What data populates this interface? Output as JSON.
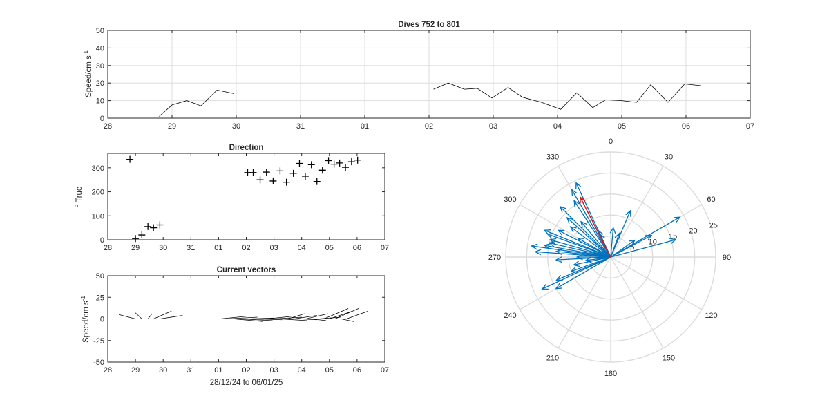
{
  "chart_data": [
    {
      "type": "line",
      "title": "Dives 752 to 801",
      "xlabel": "",
      "ylabel": "Speed/cm s",
      "ylabel_exp": "-1",
      "xlim": [
        0,
        10
      ],
      "ylim": [
        0,
        50
      ],
      "xticks": [
        "28",
        "29",
        "30",
        "31",
        "01",
        "02",
        "03",
        "04",
        "05",
        "06",
        "07"
      ],
      "yticks": [
        "0",
        "10",
        "20",
        "30",
        "40",
        "50"
      ],
      "grid": true,
      "series": [
        {
          "x": [
            0.8,
            1.0,
            1.23,
            1.45,
            1.7,
            1.96
          ],
          "y": [
            1,
            7.5,
            10,
            7,
            16,
            14
          ]
        },
        {
          "x": [
            5.07,
            5.3,
            5.55,
            5.75,
            5.98,
            6.23,
            6.45,
            6.75,
            7.05,
            7.3,
            7.55,
            7.75,
            8.0,
            8.23,
            8.45,
            8.72,
            8.98,
            9.23
          ],
          "y": [
            16.5,
            20,
            16.5,
            17,
            11.5,
            17.5,
            12,
            9,
            5,
            14.5,
            6,
            10.5,
            10,
            9,
            19,
            9,
            19.5,
            18.5
          ]
        }
      ]
    },
    {
      "type": "scatter",
      "title": "Direction",
      "xlabel": "",
      "ylabel": "True",
      "ylabel_prefix": "o",
      "xlim": [
        0,
        10
      ],
      "ylim": [
        0,
        360
      ],
      "xticks": [
        "28",
        "29",
        "30",
        "31",
        "01",
        "02",
        "03",
        "04",
        "05",
        "06",
        "07"
      ],
      "yticks": [
        "0",
        "100",
        "200",
        "300"
      ],
      "grid": false,
      "marker": "+",
      "points": [
        [
          0.8,
          335
        ],
        [
          1.0,
          5
        ],
        [
          1.23,
          20
        ],
        [
          1.45,
          55
        ],
        [
          1.65,
          50
        ],
        [
          1.88,
          62
        ],
        [
          5.05,
          280
        ],
        [
          5.25,
          280
        ],
        [
          5.5,
          250
        ],
        [
          5.73,
          282
        ],
        [
          5.97,
          245
        ],
        [
          6.22,
          287
        ],
        [
          6.45,
          240
        ],
        [
          6.7,
          277
        ],
        [
          6.92,
          318
        ],
        [
          7.13,
          265
        ],
        [
          7.35,
          313
        ],
        [
          7.55,
          243
        ],
        [
          7.75,
          290
        ],
        [
          7.97,
          330
        ],
        [
          8.17,
          315
        ],
        [
          8.37,
          320
        ],
        [
          8.58,
          302
        ],
        [
          8.8,
          325
        ],
        [
          9.02,
          332
        ]
      ]
    },
    {
      "type": "line",
      "title": "Current vectors",
      "xlabel": "28/12/24 to 06/01/25",
      "ylabel": "Speed/cm s",
      "ylabel_exp": "-1",
      "xlim": [
        0,
        10
      ],
      "ylim": [
        -50,
        50
      ],
      "xticks": [
        "28",
        "29",
        "30",
        "31",
        "01",
        "02",
        "03",
        "04",
        "05",
        "06",
        "07"
      ],
      "yticks": [
        "-50",
        "-25",
        "0",
        "25",
        "50"
      ],
      "grid": false,
      "vectors": [
        [
          1.0,
          0,
          0.4,
          5
        ],
        [
          1.23,
          0,
          1.0,
          7
        ],
        [
          1.45,
          0,
          1.6,
          6
        ],
        [
          1.65,
          0,
          2.3,
          9
        ],
        [
          1.88,
          0,
          2.7,
          4
        ],
        [
          4.05,
          0,
          5.0,
          3
        ],
        [
          4.3,
          0,
          5.4,
          2
        ],
        [
          4.55,
          0,
          5.6,
          -3
        ],
        [
          4.8,
          0,
          5.95,
          -2
        ],
        [
          5.05,
          0,
          6.0,
          1
        ],
        [
          5.3,
          0,
          6.3,
          -1
        ],
        [
          5.5,
          0,
          6.55,
          0
        ],
        [
          5.75,
          0,
          6.65,
          3
        ],
        [
          6.0,
          0,
          7.0,
          2
        ],
        [
          6.22,
          0,
          7.2,
          -2
        ],
        [
          6.5,
          0,
          7.1,
          6
        ],
        [
          6.72,
          0,
          7.55,
          4
        ],
        [
          6.95,
          0,
          7.55,
          -1
        ],
        [
          7.15,
          0,
          7.95,
          6
        ],
        [
          7.38,
          0,
          7.88,
          -2
        ],
        [
          7.6,
          0,
          8.4,
          2
        ],
        [
          7.8,
          0,
          8.68,
          12
        ],
        [
          8.0,
          0,
          8.83,
          9
        ],
        [
          8.2,
          0,
          9.05,
          12
        ],
        [
          8.42,
          0,
          8.88,
          -3
        ],
        [
          8.62,
          0,
          9.4,
          9
        ]
      ]
    },
    {
      "type": "polar",
      "theta_ticks": [
        "0",
        "30",
        "60",
        "90",
        "120",
        "150",
        "180",
        "210",
        "240",
        "270",
        "300",
        "330"
      ],
      "r_ticks": [
        "5",
        "10",
        "15",
        "20",
        "25"
      ],
      "rlim": [
        0,
        25
      ],
      "theta_zero": "top",
      "direction": "clockwise",
      "colors": {
        "vectors": "#0072BD",
        "mean": "#D7191C"
      },
      "vectors": [
        [
          335,
          19.5
        ],
        [
          335,
          6
        ],
        [
          335,
          7
        ],
        [
          327,
          16
        ],
        [
          320,
          11
        ],
        [
          315,
          17
        ],
        [
          312,
          14
        ],
        [
          307,
          12
        ],
        [
          300,
          9
        ],
        [
          297,
          14
        ],
        [
          292,
          17
        ],
        [
          290,
          16
        ],
        [
          286,
          15
        ],
        [
          283,
          15
        ],
        [
          280,
          16
        ],
        [
          278,
          19
        ],
        [
          276,
          13
        ],
        [
          274,
          18
        ],
        [
          270,
          8
        ],
        [
          267,
          13
        ],
        [
          262,
          6
        ],
        [
          258,
          9
        ],
        [
          250,
          10
        ],
        [
          247,
          14
        ],
        [
          245,
          18
        ],
        [
          240,
          15
        ],
        [
          5,
          7
        ],
        [
          20,
          6
        ],
        [
          23,
          12
        ],
        [
          55,
          7
        ],
        [
          60,
          19
        ],
        [
          62,
          11
        ],
        [
          75,
          16
        ],
        [
          330,
          18.5
        ]
      ],
      "mean_vector": [
        333,
        16
      ]
    }
  ]
}
